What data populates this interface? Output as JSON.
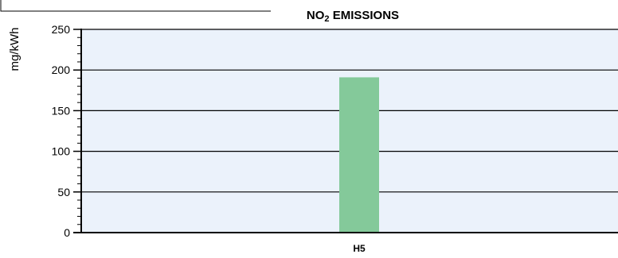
{
  "chart_data": {
    "type": "bar",
    "title_parts": [
      {
        "text": "NO",
        "sub": false
      },
      {
        "text": "2",
        "sub": true
      },
      {
        "text": " EMISSIONS",
        "sub": false
      }
    ],
    "ylabel": "mg/kWh",
    "xlabel": "",
    "categories": [
      "H5"
    ],
    "values": [
      191
    ],
    "ylim": [
      0,
      250
    ],
    "yticks": [
      0,
      50,
      100,
      150,
      200,
      250
    ],
    "grid": true,
    "colors": {
      "plot_background": "#ebf2fb",
      "bar": "#84c99a",
      "axis": "#000000"
    }
  }
}
